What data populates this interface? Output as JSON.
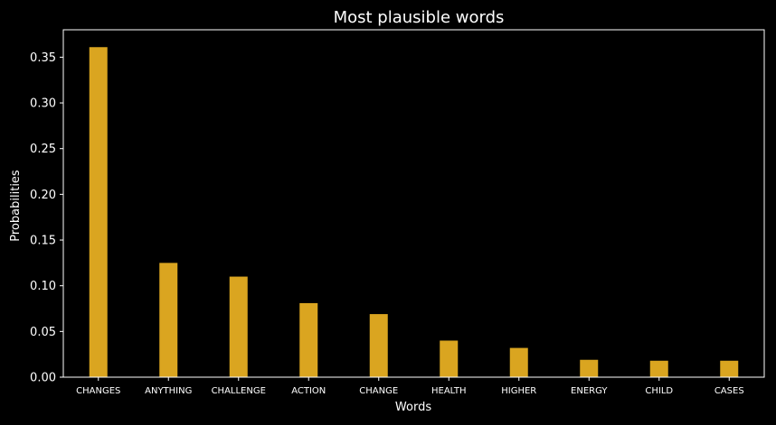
{
  "chart_data": {
    "type": "bar",
    "title": "Most plausible words",
    "xlabel": "Words",
    "ylabel": "Probabilities",
    "categories": [
      "CHANGES",
      "ANYTHING",
      "CHALLENGE",
      "ACTION",
      "CHANGE",
      "HEALTH",
      "HIGHER",
      "ENERGY",
      "CHILD",
      "CASES"
    ],
    "values": [
      0.361,
      0.125,
      0.11,
      0.081,
      0.069,
      0.04,
      0.032,
      0.019,
      0.018,
      0.018
    ],
    "ylim": [
      0,
      0.38
    ],
    "yticks": [
      0.0,
      0.05,
      0.1,
      0.15,
      0.2,
      0.25,
      0.3,
      0.35
    ],
    "ytick_labels": [
      "0.00",
      "0.05",
      "0.10",
      "0.15",
      "0.20",
      "0.25",
      "0.30",
      "0.35"
    ],
    "grid": false,
    "legend": "none",
    "colors": {
      "background": "#000000",
      "bar": "#DAA520",
      "axis": "#ffffff",
      "text": "#ffffff"
    }
  }
}
